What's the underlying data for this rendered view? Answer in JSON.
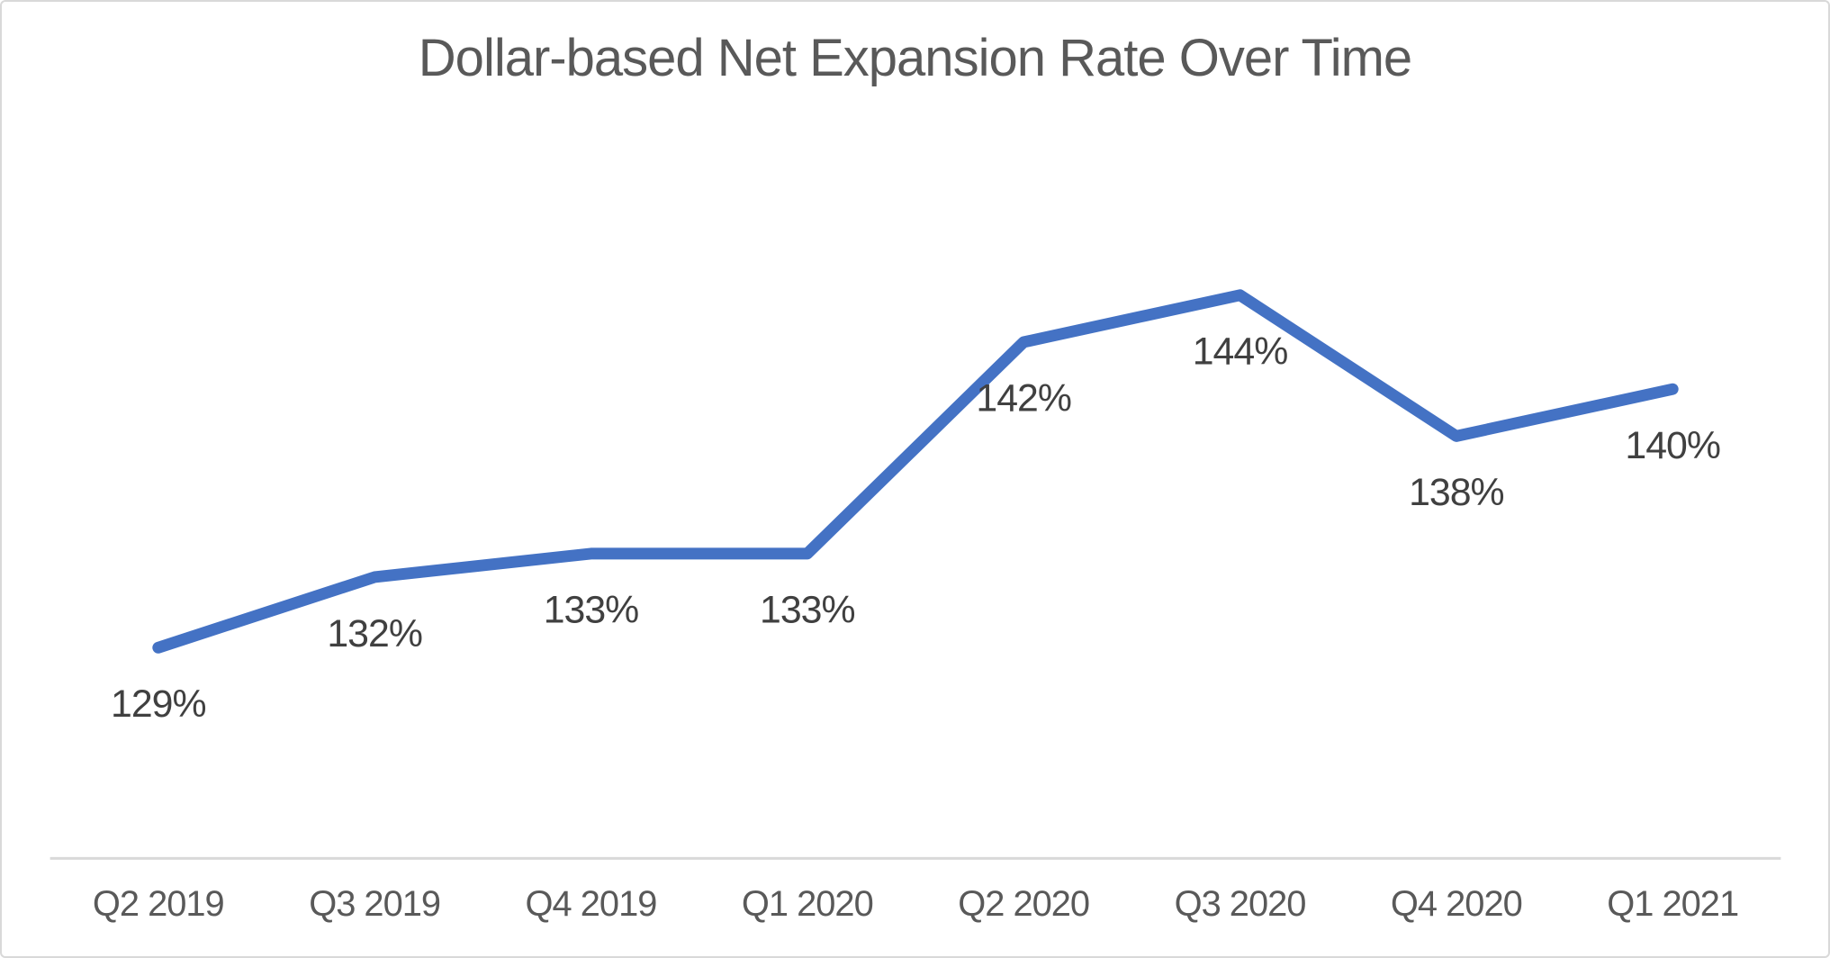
{
  "chart_data": {
    "type": "line",
    "title": "Dollar-based Net Expansion Rate Over Time",
    "categories": [
      "Q2 2019",
      "Q3 2019",
      "Q4 2019",
      "Q1 2020",
      "Q2 2020",
      "Q3 2020",
      "Q4 2020",
      "Q1 2021"
    ],
    "values": [
      129,
      132,
      133,
      133,
      142,
      144,
      138,
      140
    ],
    "data_labels": [
      "129%",
      "132%",
      "133%",
      "133%",
      "142%",
      "144%",
      "138%",
      "140%"
    ],
    "unit": "%",
    "xlabel": "",
    "ylabel": "",
    "y_axis_visible": false,
    "grid": false,
    "legend": null,
    "colors": {
      "line": "#4472C4",
      "data_label_text": "#404040",
      "axis_label_text": "#595959",
      "axis_line": "#D9D9D9",
      "title_text": "#595959",
      "background": "#FFFFFF",
      "border": "#D9D9D9"
    }
  }
}
